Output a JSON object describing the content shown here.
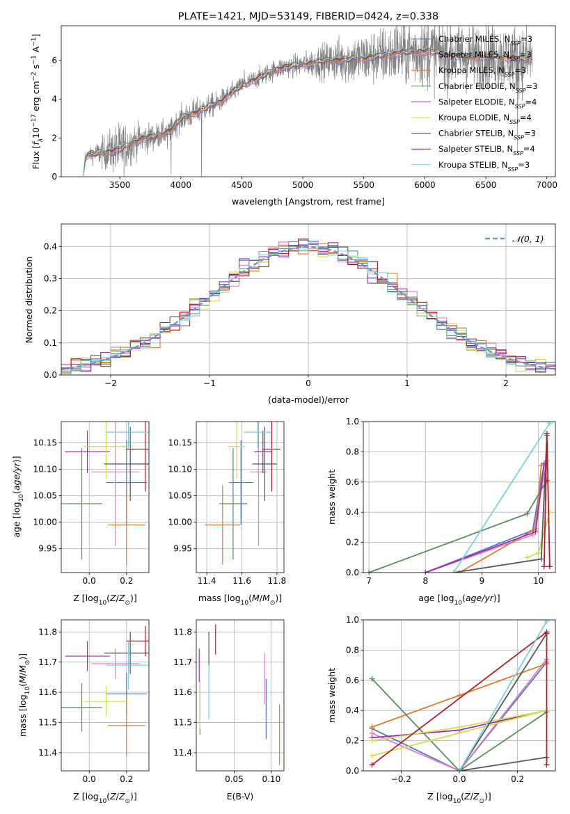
{
  "colors": {
    "Chabrier MILES": "#4f77c9",
    "Salpeter MILES": "#e27fbf",
    "Kroupa MILES": "#e07a2a",
    "Chabrier ELODIE": "#5b8a66",
    "Salpeter ELODIE": "#9b2fae",
    "Kroupa ELODIE": "#d2dd50",
    "Chabrier STELIB": "#555555",
    "Salpeter STELIB": "#b01e26",
    "Kroupa STELIB": "#78d2da",
    "data": "#808080",
    "normal": "#6f91d9"
  },
  "chart_data": [
    {
      "type": "line",
      "id": "spectrum",
      "title": "PLATE=1421, MJD=53149, FIBERID=0424, z=0.338",
      "xlabel": "wavelength [Angstrom, rest frame]",
      "ylabel": "Flux [fλ10⁻¹⁷ erg cm⁻² s⁻¹ A⁻¹]",
      "xlim": [
        3020,
        7070
      ],
      "ylim": [
        0,
        7.8
      ],
      "xticks": [
        3500,
        4000,
        4500,
        5000,
        5500,
        6000,
        6500,
        7000
      ],
      "yticks": [
        0,
        2,
        4,
        6
      ],
      "grid": false,
      "legend_position": "right",
      "continuum_knots": [
        [
          3200,
          0.05
        ],
        [
          3220,
          1.1
        ],
        [
          3500,
          1.4
        ],
        [
          3650,
          1.9
        ],
        [
          3800,
          2.1
        ],
        [
          3920,
          2.4
        ],
        [
          4000,
          3.0
        ],
        [
          4300,
          3.8
        ],
        [
          4500,
          4.7
        ],
        [
          4800,
          5.6
        ],
        [
          5200,
          6.0
        ],
        [
          5500,
          6.1
        ],
        [
          5800,
          6.4
        ],
        [
          6000,
          6.5
        ],
        [
          6300,
          6.2
        ],
        [
          6600,
          6.2
        ],
        [
          6880,
          6.0
        ]
      ],
      "data_noise_knots": [
        [
          3200,
          0.1
        ],
        [
          3500,
          1.2
        ],
        [
          3650,
          0.7
        ],
        [
          3900,
          0.5
        ],
        [
          4100,
          0.6
        ],
        [
          4500,
          0.4
        ],
        [
          5000,
          0.5
        ],
        [
          5300,
          1.0
        ],
        [
          5700,
          1.3
        ],
        [
          6000,
          1.6
        ],
        [
          6500,
          1.4
        ],
        [
          6880,
          1.5
        ]
      ],
      "spikes": [
        [
          3510,
          -1.1
        ],
        [
          3890,
          -1.5
        ],
        [
          3920,
          -2.2
        ],
        [
          4170,
          -4.6
        ],
        [
          4520,
          0.8
        ],
        [
          5180,
          -1.5
        ],
        [
          5770,
          1.7
        ],
        [
          6300,
          1.5
        ],
        [
          6760,
          -4.5
        ],
        [
          6780,
          1.3
        ]
      ],
      "series": [
        {
          "name": "Chabrier MILES, N_SSP=3",
          "label": "Chabrier MILES, N",
          "sub": "SSP",
          "suffix": "=3"
        },
        {
          "name": "Salpeter MILES, N_SSP=3",
          "label": "Salpeter MILES, N",
          "sub": "SSP",
          "suffix": "=3"
        },
        {
          "name": "Kroupa MILES, N_SSP=3",
          "label": "Kroupa MILES, N",
          "sub": "SSP",
          "suffix": "=3"
        },
        {
          "name": "Chabrier ELODIE, N_SSP=3",
          "label": "Chabrier ELODIE, N",
          "sub": "SSP",
          "suffix": "=3"
        },
        {
          "name": "Salpeter ELODIE, N_SSP=4",
          "label": "Salpeter ELODIE, N",
          "sub": "SSP",
          "suffix": "=4"
        },
        {
          "name": "Kroupa ELODIE, N_SSP=4",
          "label": "Kroupa ELODIE, N",
          "sub": "SSP",
          "suffix": "=4"
        },
        {
          "name": "Chabrier STELIB, N_SSP=3",
          "label": "Chabrier STELIB, N",
          "sub": "SSP",
          "suffix": "=3"
        },
        {
          "name": "Salpeter STELIB, N_SSP=4",
          "label": "Salpeter STELIB, N",
          "sub": "SSP",
          "suffix": "=4"
        },
        {
          "name": "Kroupa STELIB, N_SSP=3",
          "label": "Kroupa STELIB, N",
          "sub": "SSP",
          "suffix": "=3"
        }
      ]
    },
    {
      "type": "area",
      "id": "residuals",
      "xlabel": "(data-model)/error",
      "ylabel": "Normed distribution",
      "xlim": [
        -2.5,
        2.5
      ],
      "ylim": [
        0,
        0.47
      ],
      "xticks": [
        -2,
        -1,
        0,
        1,
        2
      ],
      "yticks": [
        0.0,
        0.1,
        0.2,
        0.3,
        0.4
      ],
      "grid": true,
      "bin_width": 0.1,
      "legend": "𝒩(0, 1)",
      "legend_position": "top-right",
      "model_curve": "normal pdf mean 0 sigma 1"
    },
    {
      "type": "scatter",
      "id": "age-vs-Z",
      "xlabel": "Z [log10(Z/Z⊙)]",
      "ylabel": "age  [log10(age/yr)]",
      "xlim": [
        -0.15,
        0.32
      ],
      "ylim": [
        9.905,
        10.19
      ],
      "xticks": [
        0.0,
        0.2
      ],
      "yticks": [
        9.95,
        10.0,
        10.05,
        10.1,
        10.15
      ],
      "grid": true,
      "points": [
        {
          "series": "Chabrier MILES",
          "Z": 0.2,
          "Zerr": 0.11,
          "age": 10.075,
          "ageErr": 0.08
        },
        {
          "series": "Salpeter MILES",
          "Z": 0.14,
          "Zerr": 0.13,
          "age": 10.095,
          "ageErr": 0.14
        },
        {
          "series": "Kroupa MILES",
          "Z": 0.2,
          "Zerr": 0.1,
          "age": 9.995,
          "ageErr": 0.075
        },
        {
          "series": "Chabrier ELODIE",
          "Z": -0.04,
          "Zerr": 0.11,
          "age": 10.035,
          "ageErr": 0.105
        },
        {
          "series": "Salpeter ELODIE",
          "Z": -0.01,
          "Zerr": 0.12,
          "age": 10.133,
          "ageErr": 0.04
        },
        {
          "series": "Kroupa ELODIE",
          "Z": 0.09,
          "Zerr": 0.12,
          "age": 10.143,
          "ageErr": 0.06
        },
        {
          "series": "Chabrier STELIB",
          "Z": 0.22,
          "Zerr": 0.14,
          "age": 10.11,
          "ageErr": 0.07
        },
        {
          "series": "Salpeter STELIB",
          "Z": 0.3,
          "Zerr": 0.1,
          "age": 10.138,
          "ageErr": 0.08
        },
        {
          "series": "Kroupa STELIB",
          "Z": 0.21,
          "Zerr": 0.12,
          "age": 10.17,
          "ageErr": 0.03
        }
      ]
    },
    {
      "type": "scatter",
      "id": "age-vs-mass",
      "xlabel": "mass [log10(M/M⊙)]",
      "ylabel": "",
      "xlim": [
        11.34,
        11.84
      ],
      "ylim": [
        9.905,
        10.19
      ],
      "xticks": [
        11.4,
        11.6,
        11.8
      ],
      "yticks": [
        9.95,
        10.0,
        10.05,
        10.1,
        10.15
      ],
      "grid": true,
      "points": [
        {
          "series": "Chabrier MILES",
          "mass": 11.595,
          "massErr": 0.07,
          "age": 10.075,
          "ageErr": 0.08
        },
        {
          "series": "Salpeter MILES",
          "mass": 11.695,
          "massErr": 0.05,
          "age": 10.095,
          "ageErr": 0.14
        },
        {
          "series": "Kroupa MILES",
          "mass": 11.49,
          "massErr": 0.1,
          "age": 9.995,
          "ageErr": 0.075
        },
        {
          "series": "Chabrier ELODIE",
          "mass": 11.55,
          "massErr": 0.08,
          "age": 10.035,
          "ageErr": 0.105
        },
        {
          "series": "Salpeter ELODIE",
          "mass": 11.72,
          "massErr": 0.05,
          "age": 10.133,
          "ageErr": 0.04
        },
        {
          "series": "Kroupa ELODIE",
          "mass": 11.57,
          "massErr": 0.05,
          "age": 10.143,
          "ageErr": 0.06
        },
        {
          "series": "Chabrier STELIB",
          "mass": 11.73,
          "massErr": 0.07,
          "age": 10.11,
          "ageErr": 0.07
        },
        {
          "series": "Salpeter STELIB",
          "mass": 11.77,
          "massErr": 0.05,
          "age": 10.138,
          "ageErr": 0.08
        },
        {
          "series": "Kroupa STELIB",
          "mass": 11.69,
          "massErr": 0.08,
          "age": 10.17,
          "ageErr": 0.03
        }
      ]
    },
    {
      "type": "line",
      "id": "massweight-vs-age",
      "xlabel": "age  [log10(age/yr)]",
      "ylabel": "mass weight",
      "xlim": [
        6.9,
        10.3
      ],
      "ylim": [
        0,
        1.0
      ],
      "xticks": [
        7,
        8,
        9,
        10
      ],
      "yticks": [
        0.0,
        0.2,
        0.4,
        0.6,
        0.8,
        1.0
      ],
      "grid": true,
      "series": [
        {
          "name": "Chabrier MILES",
          "points": [
            [
              8.0,
              0.0
            ],
            [
              9.9,
              0.28
            ],
            [
              10.1,
              0.72
            ]
          ]
        },
        {
          "name": "Salpeter MILES",
          "points": [
            [
              8.0,
              0.0
            ],
            [
              9.9,
              0.25
            ],
            [
              10.15,
              0.74
            ]
          ]
        },
        {
          "name": "Kroupa MILES",
          "points": [
            [
              8.6,
              0.0
            ],
            [
              9.95,
              0.29
            ],
            [
              10.05,
              0.71
            ]
          ]
        },
        {
          "name": "Chabrier ELODIE",
          "points": [
            [
              7.0,
              0.0
            ],
            [
              9.8,
              0.39
            ],
            [
              10.15,
              0.61
            ]
          ]
        },
        {
          "name": "Salpeter ELODIE",
          "points": [
            [
              8.0,
              0.0
            ],
            [
              9.95,
              0.27
            ],
            [
              10.1,
              0.72
            ]
          ]
        },
        {
          "name": "Kroupa ELODIE",
          "points": [
            [
              9.8,
              0.1
            ],
            [
              10.0,
              0.13
            ],
            [
              10.2,
              0.4
            ]
          ]
        },
        {
          "name": "Chabrier STELIB",
          "points": [
            [
              8.5,
              0.0
            ],
            [
              10.05,
              0.09
            ],
            [
              10.15,
              0.91
            ]
          ]
        },
        {
          "name": "Salpeter STELIB",
          "points": [
            [
              10.1,
              0.04
            ],
            [
              10.15,
              0.92
            ],
            [
              10.2,
              0.04
            ]
          ]
        },
        {
          "name": "Kroupa STELIB",
          "points": [
            [
              8.5,
              0.0
            ],
            [
              10.2,
              0.99
            ]
          ]
        }
      ]
    },
    {
      "type": "scatter",
      "id": "mass-vs-Z",
      "xlabel": "Z [log10(Z/Z⊙)]",
      "ylabel": "mass [log10(M/M⊙)]",
      "xlim": [
        -0.15,
        0.32
      ],
      "ylim": [
        11.34,
        11.84
      ],
      "xticks": [
        0.0,
        0.2
      ],
      "yticks": [
        11.4,
        11.5,
        11.6,
        11.7,
        11.8
      ],
      "grid": true,
      "points": [
        {
          "series": "Chabrier MILES",
          "Z": 0.2,
          "Zerr": 0.11,
          "mass": 11.595,
          "massErr": 0.07
        },
        {
          "series": "Salpeter MILES",
          "Z": 0.14,
          "Zerr": 0.13,
          "mass": 11.695,
          "massErr": 0.05
        },
        {
          "series": "Kroupa MILES",
          "Z": 0.2,
          "Zerr": 0.1,
          "mass": 11.49,
          "massErr": 0.1
        },
        {
          "series": "Chabrier ELODIE",
          "Z": -0.04,
          "Zerr": 0.11,
          "mass": 11.55,
          "massErr": 0.08
        },
        {
          "series": "Salpeter ELODIE",
          "Z": -0.01,
          "Zerr": 0.12,
          "mass": 11.72,
          "massErr": 0.05
        },
        {
          "series": "Kroupa ELODIE",
          "Z": 0.09,
          "Zerr": 0.12,
          "mass": 11.57,
          "massErr": 0.05
        },
        {
          "series": "Chabrier STELIB",
          "Z": 0.22,
          "Zerr": 0.14,
          "mass": 11.73,
          "massErr": 0.07
        },
        {
          "series": "Salpeter STELIB",
          "Z": 0.3,
          "Zerr": 0.1,
          "mass": 11.77,
          "massErr": 0.05
        },
        {
          "series": "Kroupa STELIB",
          "Z": 0.21,
          "Zerr": 0.12,
          "mass": 11.69,
          "massErr": 0.08
        }
      ]
    },
    {
      "type": "scatter",
      "id": "mass-vs-EBV",
      "xlabel": "E(B-V)",
      "ylabel": "",
      "xlim": [
        -0.001,
        0.117
      ],
      "ylim": [
        11.34,
        11.84
      ],
      "xticks": [
        0.05,
        0.1
      ],
      "yticks": [
        11.4,
        11.5,
        11.6,
        11.7,
        11.8
      ],
      "grid": true,
      "points": [
        {
          "series": "Chabrier MILES",
          "ebv": 0.093,
          "mass": 11.545,
          "massErr": 0.1
        },
        {
          "series": "Salpeter MILES",
          "ebv": 0.091,
          "mass": 11.645,
          "massErr": 0.085
        },
        {
          "series": "Kroupa MILES",
          "ebv": 0.111,
          "mass": 11.46,
          "massErr": 0.1
        },
        {
          "series": "Chabrier ELODIE",
          "ebv": 0.004,
          "mass": 11.55,
          "massErr": 0.09
        },
        {
          "series": "Salpeter ELODIE",
          "ebv": 0.003,
          "mass": 11.69,
          "massErr": 0.055
        },
        {
          "series": "Kroupa ELODIE",
          "ebv": 0.004,
          "mass": 11.56,
          "massErr": 0.08
        },
        {
          "series": "Chabrier STELIB",
          "ebv": 0.016,
          "mass": 11.74,
          "massErr": 0.06
        },
        {
          "series": "Salpeter STELIB",
          "ebv": 0.025,
          "mass": 11.775,
          "massErr": 0.05
        },
        {
          "series": "Kroupa STELIB",
          "ebv": 0.016,
          "mass": 11.6,
          "massErr": 0.09
        }
      ]
    },
    {
      "type": "line",
      "id": "massweight-vs-Z",
      "xlabel": "Z [log10(Z/Z⊙)]",
      "ylabel": "mass weight",
      "xlim": [
        -0.33,
        0.33
      ],
      "ylim": [
        0,
        1.0
      ],
      "xticks": [
        -0.2,
        0.0,
        0.2
      ],
      "yticks": [
        0.0,
        0.2,
        0.4,
        0.6,
        0.8,
        1.0
      ],
      "grid": true,
      "series": [
        {
          "name": "Chabrier MILES",
          "points": [
            [
              -0.3,
              0.28
            ],
            [
              0.0,
              0.0
            ],
            [
              0.3,
              0.72
            ]
          ]
        },
        {
          "name": "Salpeter MILES",
          "points": [
            [
              -0.3,
              0.25
            ],
            [
              0.0,
              0.0
            ],
            [
              0.3,
              0.74
            ]
          ]
        },
        {
          "name": "Kroupa MILES",
          "points": [
            [
              -0.3,
              0.29
            ],
            [
              0.0,
              0.5
            ],
            [
              0.3,
              0.71
            ]
          ]
        },
        {
          "name": "Chabrier ELODIE",
          "points": [
            [
              -0.3,
              0.61
            ],
            [
              0.0,
              0.0
            ],
            [
              0.3,
              0.39
            ]
          ]
        },
        {
          "name": "Salpeter ELODIE",
          "points": [
            [
              -0.3,
              0.22
            ],
            [
              0.0,
              0.27
            ],
            [
              0.3,
              0.4
            ]
          ]
        },
        {
          "name": "Kroupa ELODIE",
          "points": [
            [
              -0.3,
              0.2
            ],
            [
              0.0,
              0.29
            ],
            [
              0.3,
              0.4
            ],
            [
              -0.3,
              0.1
            ]
          ]
        },
        {
          "name": "Chabrier STELIB",
          "points": [
            [
              0.3,
              0.09
            ],
            [
              0.0,
              0.0
            ],
            [
              0.3,
              0.91
            ]
          ]
        },
        {
          "name": "Salpeter STELIB",
          "points": [
            [
              -0.3,
              0.04
            ],
            [
              0.3,
              0.92
            ],
            [
              0.3,
              0.04
            ]
          ]
        },
        {
          "name": "Kroupa STELIB",
          "points": [
            [
              0.0,
              0.0
            ],
            [
              0.3,
              0.99
            ]
          ]
        }
      ]
    }
  ]
}
